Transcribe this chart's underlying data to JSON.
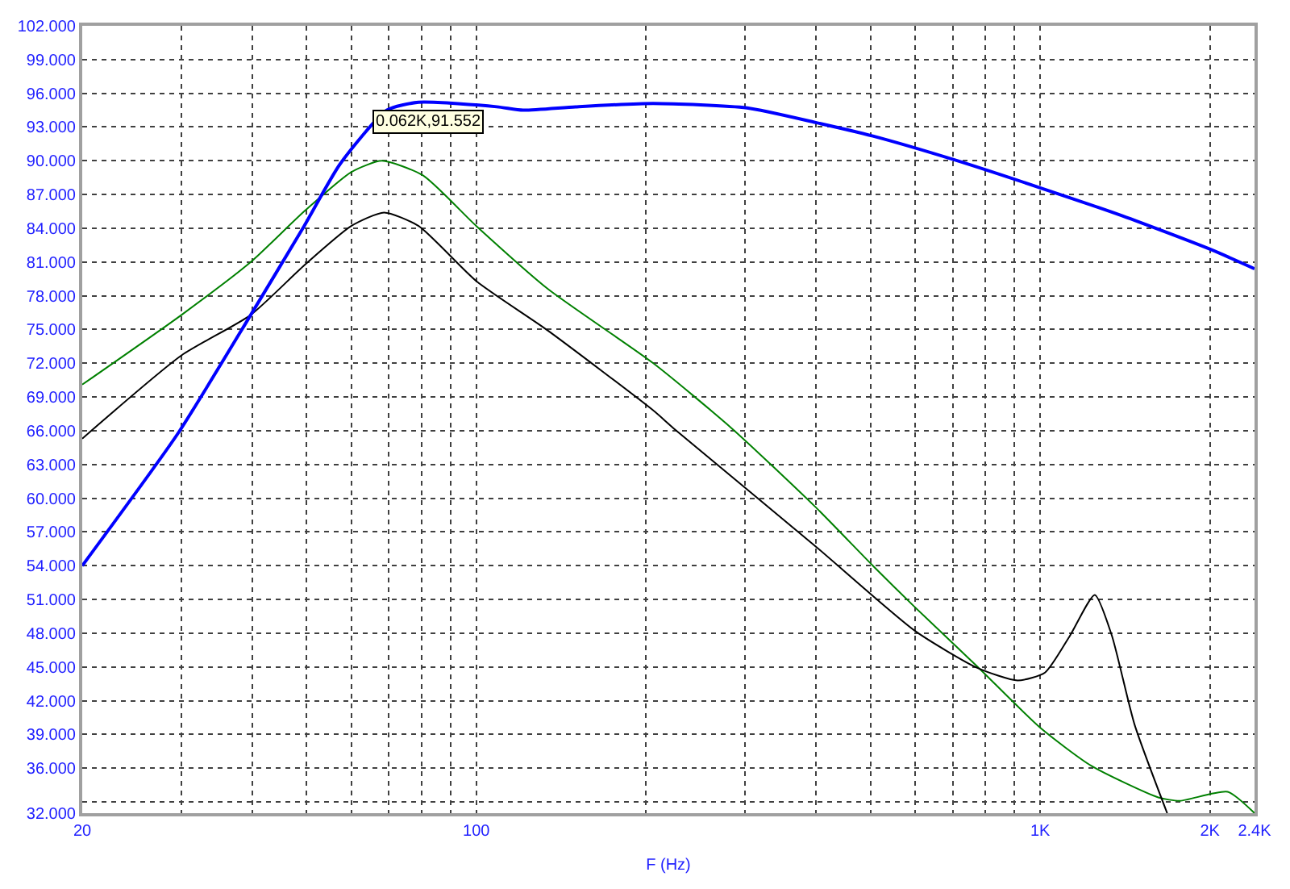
{
  "chart_data": {
    "type": "line",
    "xlabel": "F (Hz)",
    "log": "x",
    "grid": true,
    "marker": "none",
    "line_style": "solid",
    "xlim": [
      20,
      2400
    ],
    "xticks": [
      {
        "value": 20,
        "label": "20"
      },
      {
        "value": 30,
        "label": null
      },
      {
        "value": 40,
        "label": null
      },
      {
        "value": 50,
        "label": null
      },
      {
        "value": 60,
        "label": null
      },
      {
        "value": 70,
        "label": null
      },
      {
        "value": 80,
        "label": null
      },
      {
        "value": 90,
        "label": null
      },
      {
        "value": 100,
        "label": "100"
      },
      {
        "value": 200,
        "label": null
      },
      {
        "value": 300,
        "label": null
      },
      {
        "value": 400,
        "label": null
      },
      {
        "value": 500,
        "label": null
      },
      {
        "value": 600,
        "label": null
      },
      {
        "value": 700,
        "label": null
      },
      {
        "value": 800,
        "label": null
      },
      {
        "value": 900,
        "label": null
      },
      {
        "value": 1000,
        "label": "1K"
      },
      {
        "value": 2000,
        "label": "2K"
      },
      {
        "value": 2400,
        "label": "2.4K"
      }
    ],
    "ylim": [
      32,
      102
    ],
    "yticks": [
      {
        "value": 102,
        "label": "102.000"
      },
      {
        "value": 99,
        "label": "99.000"
      },
      {
        "value": 96,
        "label": "96.000"
      },
      {
        "value": 93,
        "label": "93.000"
      },
      {
        "value": 90,
        "label": "90.000"
      },
      {
        "value": 87,
        "label": "87.000"
      },
      {
        "value": 84,
        "label": "84.000"
      },
      {
        "value": 81,
        "label": "81.000"
      },
      {
        "value": 78,
        "label": "78.000"
      },
      {
        "value": 75,
        "label": "75.000"
      },
      {
        "value": 72,
        "label": "72.000"
      },
      {
        "value": 69,
        "label": "69.000"
      },
      {
        "value": 66,
        "label": "66.000"
      },
      {
        "value": 63,
        "label": "63.000"
      },
      {
        "value": 60,
        "label": "60.000"
      },
      {
        "value": 57,
        "label": "57.000"
      },
      {
        "value": 54,
        "label": "54.000"
      },
      {
        "value": 51,
        "label": "51.000"
      },
      {
        "value": 48,
        "label": "48.000"
      },
      {
        "value": 45,
        "label": "45.000"
      },
      {
        "value": 42,
        "label": "42.000"
      },
      {
        "value": 39,
        "label": "39.000"
      },
      {
        "value": 36,
        "label": "36.000"
      },
      {
        "value": 33,
        "label": null
      },
      {
        "value": 32,
        "label": "32.000"
      }
    ],
    "annotations": [
      {
        "text": "0.062K,91.552",
        "x": 62,
        "y": 91.552
      }
    ],
    "series": [
      {
        "color": "#008000",
        "x": [
          20,
          30,
          39.8,
          49.5,
          60,
          68,
          80.4,
          100,
          134,
          206,
          284,
          398,
          505,
          600,
          775,
          1000,
          1233,
          1620,
          1770,
          2150,
          2400
        ],
        "values": [
          70.1,
          76.3,
          81.0,
          85.5,
          89.0,
          90.0,
          88.7,
          84.2,
          78.6,
          72.0,
          66.2,
          59.3,
          54.0,
          50.3,
          45.0,
          39.6,
          36.2,
          33.4,
          33.1,
          33.9,
          32.0
        ]
      },
      {
        "color": "#000000",
        "x": [
          20,
          30,
          39.8,
          49.5,
          60,
          68.6,
          79,
          100,
          134,
          206,
          224,
          398,
          600,
          775,
          912,
          1020,
          1130,
          1250,
          1340,
          1470,
          1680
        ],
        "values": [
          65.3,
          72.7,
          76.3,
          80.7,
          84.2,
          85.4,
          84.2,
          79.3,
          74.9,
          67.8,
          66.2,
          55.8,
          48.2,
          44.9,
          43.8,
          44.5,
          47.8,
          51.4,
          47.8,
          39.9,
          32.0
        ]
      },
      {
        "color": "#0000ff",
        "x": [
          20,
          29.6,
          39.8,
          49.5,
          57.3,
          69.4,
          79,
          108.7,
          121,
          150,
          206,
          302,
          400,
          505,
          703,
          1000,
          1400,
          2010,
          2400
        ],
        "values": [
          54.0,
          65.8,
          76.3,
          84.2,
          89.7,
          94.5,
          95.2,
          94.8,
          94.5,
          94.8,
          95.1,
          94.7,
          93.4,
          92.2,
          90.1,
          87.6,
          85.1,
          82.1,
          80.4
        ]
      }
    ]
  }
}
